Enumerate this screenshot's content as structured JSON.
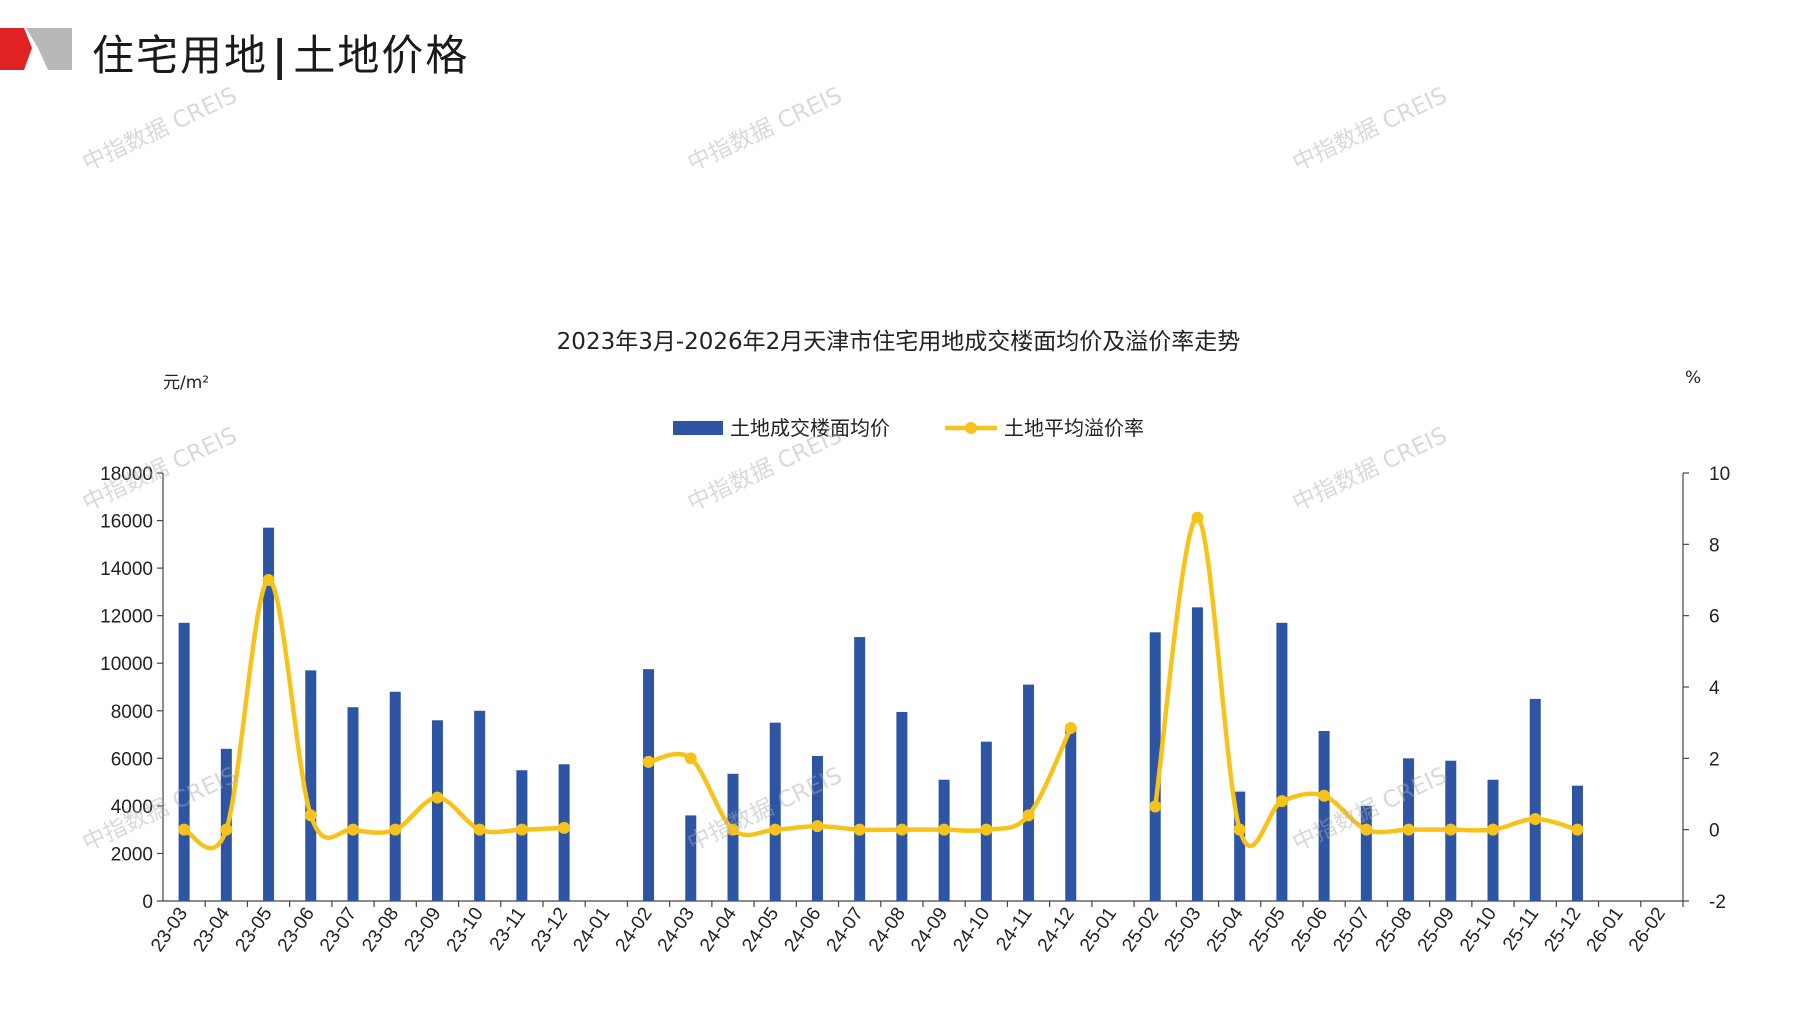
{
  "header": {
    "title_left": "住宅用地",
    "title_sep": "|",
    "title_right": "土地价格"
  },
  "watermark": "中指数据 CREIS",
  "colors": {
    "bar": "#2e55a4",
    "line": "#f7c31a",
    "logo_red": "#e02222",
    "logo_gray": "#b8b8b8"
  },
  "chart_data": {
    "type": "bar",
    "title": "2023年3月-2026年2月天津市住宅用地成交楼面均价及溢价率走势",
    "ylabel_left": "元/m²",
    "ylabel_right": "%",
    "ylim_left": [
      0,
      18000
    ],
    "ylim_right": [
      -2,
      10
    ],
    "yticks_left": [
      "0",
      "2000",
      "4000",
      "6000",
      "8000",
      "10000",
      "12000",
      "14000",
      "16000",
      "18000"
    ],
    "yticks_right": [
      "-2",
      "0",
      "2",
      "4",
      "6",
      "8",
      "10"
    ],
    "legend_position": "top-center",
    "categories": [
      "23-03",
      "23-04",
      "23-05",
      "23-06",
      "23-07",
      "23-08",
      "23-09",
      "23-10",
      "23-11",
      "23-12",
      "24-01",
      "24-02",
      "24-03",
      "24-04",
      "24-05",
      "24-06",
      "24-07",
      "24-08",
      "24-09",
      "24-10",
      "24-11",
      "24-12",
      "25-01",
      "25-02",
      "25-03",
      "25-04",
      "25-05",
      "25-06",
      "25-07",
      "25-08",
      "25-09",
      "25-10",
      "25-11",
      "25-12",
      "26-01",
      "26-02"
    ],
    "series": [
      {
        "name": "土地成交楼面均价",
        "type": "bar",
        "axis": "left",
        "values": [
          11700,
          6400,
          15700,
          9700,
          8150,
          8800,
          7600,
          8000,
          5500,
          5750,
          null,
          9750,
          3600,
          5350,
          7500,
          6100,
          11100,
          7950,
          5100,
          6700,
          9100,
          7300,
          null,
          11300,
          12350,
          4600,
          11700,
          7150,
          4000,
          6000,
          5900,
          5100,
          8500,
          4850,
          null,
          null
        ]
      },
      {
        "name": "土地平均溢价率",
        "type": "line",
        "axis": "right",
        "values": [
          0,
          0,
          7.0,
          0.4,
          0,
          0,
          0.9,
          0,
          0,
          0.05,
          null,
          1.9,
          2.0,
          0,
          0,
          0.1,
          0,
          0,
          0,
          0,
          0.4,
          2.85,
          null,
          0.65,
          8.75,
          0,
          0.8,
          0.95,
          0,
          0,
          0,
          0,
          0.3,
          0,
          null,
          null
        ]
      }
    ]
  }
}
